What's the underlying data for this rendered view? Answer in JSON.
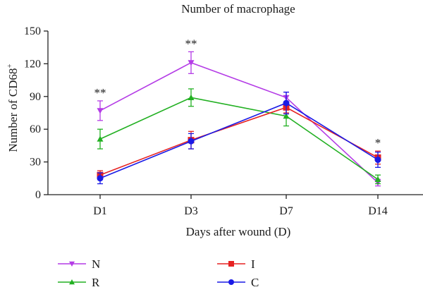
{
  "chart_data": {
    "type": "line",
    "title": "Number of macrophage",
    "xlabel": "Days after wound (D)",
    "ylabel": "Number of CD68",
    "ylabel_sup": "+",
    "categories": [
      "D1",
      "D3",
      "D7",
      "D14"
    ],
    "ylim": [
      0,
      150
    ],
    "yticks": [
      0,
      30,
      60,
      90,
      120,
      150
    ],
    "grid": false,
    "legend_position": "bottom",
    "series": [
      {
        "name": "N",
        "color": "#b43ce6",
        "marker": "triangle-down",
        "values": [
          77,
          121,
          89,
          11
        ],
        "errors": [
          9,
          10,
          5,
          3
        ]
      },
      {
        "name": "R",
        "color": "#22b022",
        "marker": "triangle-up",
        "values": [
          51,
          89,
          72,
          14
        ],
        "errors": [
          9,
          8,
          9,
          4
        ]
      },
      {
        "name": "I",
        "color": "#e62222",
        "marker": "square",
        "values": [
          18,
          50,
          80,
          34
        ],
        "errors": [
          4,
          8,
          5,
          6
        ]
      },
      {
        "name": "C",
        "color": "#1a1ae6",
        "marker": "circle",
        "values": [
          15,
          49,
          84,
          32
        ],
        "errors": [
          5,
          7,
          10,
          7
        ]
      }
    ],
    "annotations": [
      {
        "category": "D1",
        "text": "**"
      },
      {
        "category": "D3",
        "text": "**"
      },
      {
        "category": "D14",
        "text": "*"
      }
    ]
  }
}
